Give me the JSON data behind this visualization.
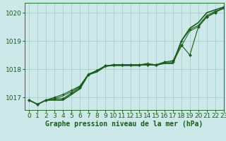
{
  "title": "Graphe pression niveau de la mer (hPa)",
  "background_color": "#cce8e8",
  "grid_color": "#aacccc",
  "line_color": "#1a5c1a",
  "spine_color": "#2a6e2a",
  "xlim": [
    -0.5,
    23
  ],
  "ylim": [
    1016.55,
    1020.35
  ],
  "yticks": [
    1017,
    1018,
    1019,
    1020
  ],
  "xticks": [
    0,
    1,
    2,
    3,
    4,
    5,
    6,
    7,
    8,
    9,
    10,
    11,
    12,
    13,
    14,
    15,
    16,
    17,
    18,
    19,
    20,
    21,
    22,
    23
  ],
  "series": [
    [
      1016.9,
      1016.75,
      1016.9,
      1016.9,
      1016.9,
      1017.1,
      1017.3,
      1017.8,
      1017.9,
      1018.1,
      1018.15,
      1018.15,
      1018.15,
      1018.15,
      1018.15,
      1018.15,
      1018.2,
      1018.2,
      1019.0,
      1019.45,
      1019.65,
      1020.0,
      1020.1,
      1020.2
    ],
    [
      1016.9,
      1016.75,
      1016.9,
      1016.95,
      1016.95,
      1017.15,
      1017.35,
      1017.8,
      1017.95,
      1018.12,
      1018.15,
      1018.15,
      1018.15,
      1018.15,
      1018.15,
      1018.15,
      1018.25,
      1018.3,
      1018.85,
      1018.5,
      1019.5,
      1019.85,
      1020.0,
      1020.2
    ],
    [
      1016.9,
      1016.75,
      1016.9,
      1017.0,
      1017.1,
      1017.25,
      1017.4,
      1017.82,
      1017.95,
      1018.1,
      1018.15,
      1018.15,
      1018.15,
      1018.15,
      1018.2,
      1018.15,
      1018.25,
      1018.25,
      1019.0,
      1019.4,
      1019.55,
      1019.9,
      1020.05,
      1020.15
    ],
    [
      1016.9,
      1016.75,
      1016.9,
      1016.95,
      1017.05,
      1017.2,
      1017.38,
      1017.82,
      1017.93,
      1018.1,
      1018.12,
      1018.12,
      1018.12,
      1018.12,
      1018.18,
      1018.12,
      1018.22,
      1018.22,
      1018.82,
      1019.35,
      1019.5,
      1019.85,
      1020.02,
      1020.15
    ]
  ],
  "marker_series": [
    1,
    2,
    3
  ],
  "title_fontsize": 7,
  "tick_fontsize": 6.5
}
